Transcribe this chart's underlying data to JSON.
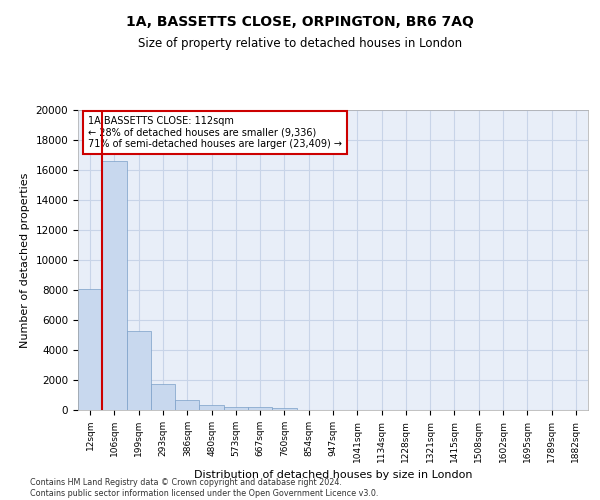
{
  "title_line1": "1A, BASSETTS CLOSE, ORPINGTON, BR6 7AQ",
  "title_line2": "Size of property relative to detached houses in London",
  "xlabel": "Distribution of detached houses by size in London",
  "ylabel": "Number of detached properties",
  "categories": [
    "12sqm",
    "106sqm",
    "199sqm",
    "293sqm",
    "386sqm",
    "480sqm",
    "573sqm",
    "667sqm",
    "760sqm",
    "854sqm",
    "947sqm",
    "1041sqm",
    "1134sqm",
    "1228sqm",
    "1321sqm",
    "1415sqm",
    "1508sqm",
    "1602sqm",
    "1695sqm",
    "1789sqm",
    "1882sqm"
  ],
  "values": [
    8050,
    16600,
    5300,
    1750,
    700,
    320,
    200,
    175,
    150,
    0,
    0,
    0,
    0,
    0,
    0,
    0,
    0,
    0,
    0,
    0,
    0
  ],
  "bar_color": "#c8d8ee",
  "bar_edge_color": "#7a9fc8",
  "vline_color": "#cc0000",
  "annotation_title": "1A BASSETTS CLOSE: 112sqm",
  "annotation_line2": "← 28% of detached houses are smaller (9,336)",
  "annotation_line3": "71% of semi-detached houses are larger (23,409) →",
  "annotation_box_color": "#cc0000",
  "ylim": [
    0,
    20000
  ],
  "yticks": [
    0,
    2000,
    4000,
    6000,
    8000,
    10000,
    12000,
    14000,
    16000,
    18000,
    20000
  ],
  "grid_color": "#c8d4e8",
  "background_color": "#e8eef8",
  "footer_line1": "Contains HM Land Registry data © Crown copyright and database right 2024.",
  "footer_line2": "Contains public sector information licensed under the Open Government Licence v3.0."
}
